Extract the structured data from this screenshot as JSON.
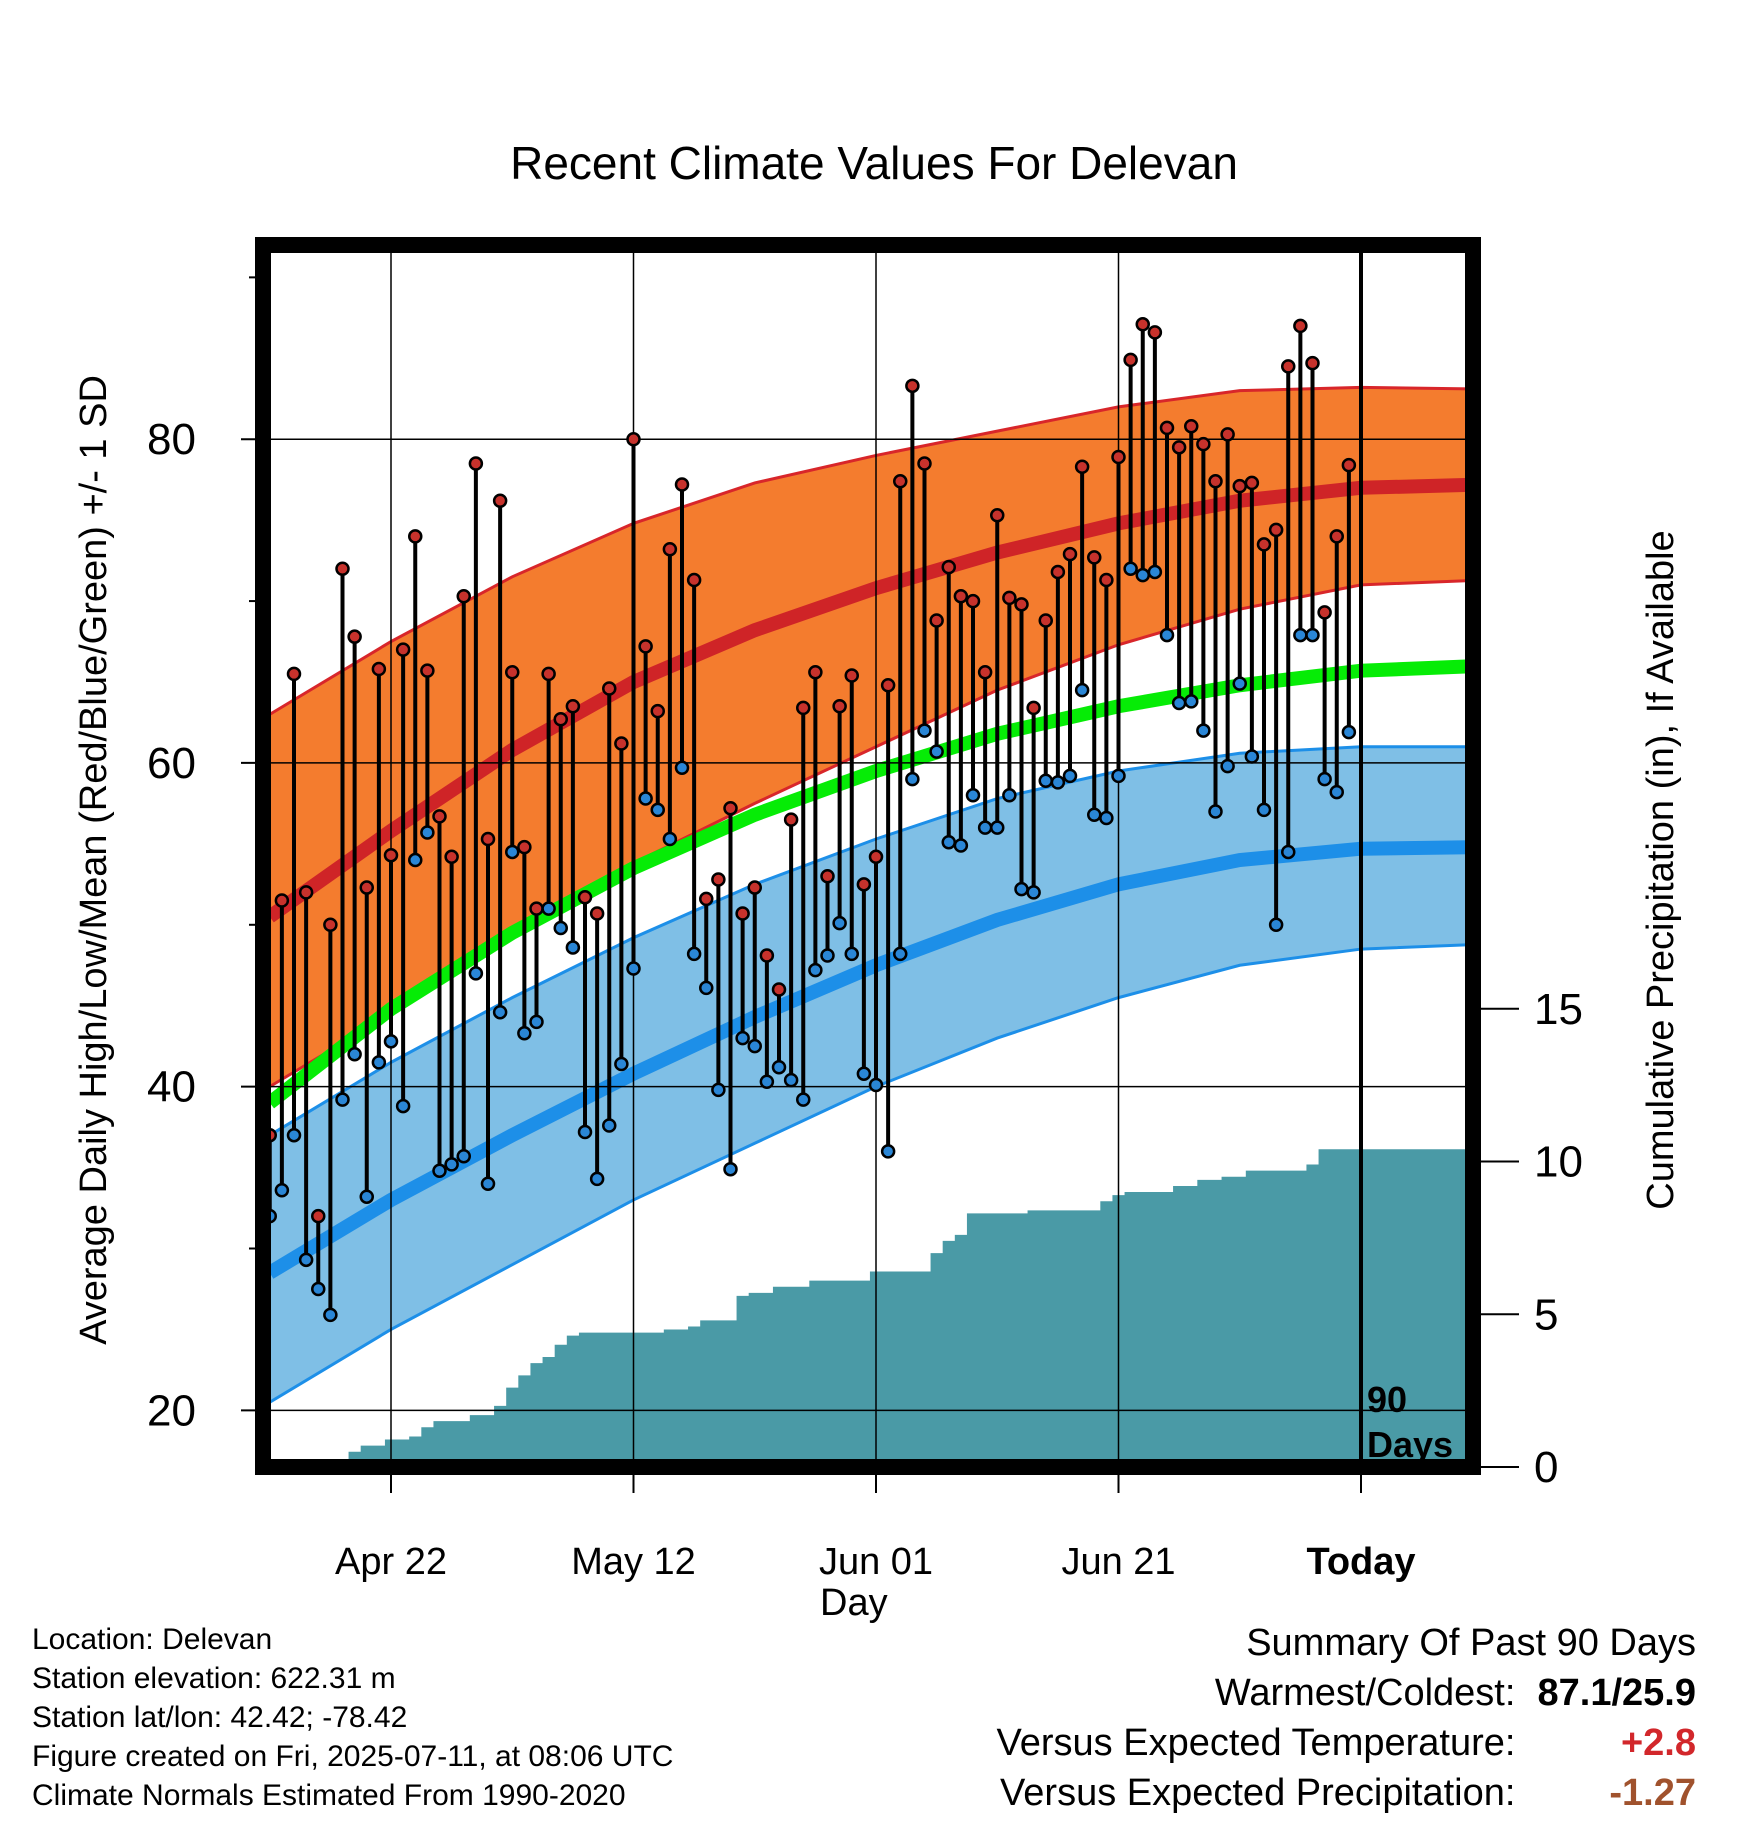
{
  "chart_data": {
    "type": "line",
    "title": "Recent Climate Values For Delevan",
    "xlabel": "Day",
    "ylabel": "Average Daily High/Low/Mean (Red/Blue/Green) +/- 1 SD",
    "y2label": "Cumulative Precipitation (in), If Available",
    "ylim": [
      16.5,
      92
    ],
    "y2lim": [
      0,
      40
    ],
    "y_ticks": [
      20,
      40,
      60,
      80
    ],
    "y2_ticks": [
      0,
      5,
      10,
      15
    ],
    "x_ticks": [
      "Apr 22",
      "May 12",
      "Jun 01",
      "Jun 21",
      "Today"
    ],
    "x_tick_days": [
      10,
      30,
      50,
      70,
      90
    ],
    "today_marker_label": [
      "90",
      "Days"
    ],
    "grid": true,
    "normals": {
      "days": [
        0,
        10,
        20,
        30,
        40,
        50,
        60,
        70,
        80,
        90,
        100
      ],
      "high_mean": [
        50.5,
        55.8,
        60.8,
        65.0,
        68.2,
        70.8,
        73.0,
        74.8,
        76.2,
        77.0,
        77.2
      ],
      "high_sd_upper": [
        63.0,
        67.5,
        71.5,
        74.8,
        77.3,
        79.0,
        80.5,
        82.0,
        83.0,
        83.2,
        83.1
      ],
      "high_sd_lower": [
        40.0,
        44.5,
        49.8,
        53.8,
        57.5,
        61.0,
        64.5,
        67.3,
        69.5,
        71.0,
        71.3
      ],
      "mean": [
        39.0,
        44.8,
        49.5,
        53.5,
        56.8,
        59.5,
        61.8,
        63.5,
        64.8,
        65.7,
        66.0
      ],
      "low_mean": [
        28.5,
        33.0,
        37.0,
        40.8,
        44.3,
        47.5,
        50.3,
        52.5,
        54.0,
        54.7,
        54.8
      ],
      "low_sd_upper": [
        37.0,
        41.5,
        45.5,
        49.2,
        52.5,
        55.3,
        57.8,
        59.5,
        60.6,
        61.0,
        61.0
      ],
      "low_sd_lower": [
        20.5,
        25.0,
        29.0,
        33.0,
        36.5,
        40.0,
        43.0,
        45.5,
        47.5,
        48.5,
        48.8
      ]
    },
    "highs": [
      37.0,
      51.5,
      65.5,
      52.0,
      32.0,
      50.0,
      72.0,
      67.8,
      52.3,
      65.8,
      54.3,
      67.0,
      74.0,
      65.7,
      56.7,
      54.2,
      70.3,
      78.5,
      55.3,
      76.2,
      65.6,
      54.8,
      51.0,
      65.5,
      62.7,
      63.5,
      51.7,
      50.7,
      64.6,
      61.2,
      80.0,
      67.2,
      63.2,
      73.2,
      77.2,
      71.3,
      51.6,
      52.8,
      57.2,
      50.7,
      52.3,
      48.1,
      46.0,
      56.5,
      63.4,
      65.6,
      53.0,
      63.5,
      65.4,
      52.5,
      54.2,
      64.8,
      77.4,
      83.3,
      78.5,
      68.8,
      72.1,
      70.3,
      70.0,
      65.6,
      75.3,
      70.2,
      69.8,
      63.4,
      68.8,
      71.8,
      72.9,
      78.3,
      72.7,
      71.3,
      78.9,
      84.9,
      87.1,
      86.6,
      80.7,
      79.5,
      80.8,
      79.7,
      77.4,
      80.3,
      77.1,
      77.3,
      73.5,
      74.4,
      84.5,
      87.0,
      84.7,
      69.3,
      74.0,
      78.4
    ],
    "lows": [
      32.0,
      33.6,
      37.0,
      29.3,
      27.5,
      25.9,
      39.2,
      42.0,
      33.2,
      41.5,
      42.8,
      38.8,
      54.0,
      55.7,
      34.8,
      35.2,
      35.7,
      47.0,
      34.0,
      44.6,
      54.5,
      43.3,
      44.0,
      51.0,
      49.8,
      48.6,
      37.2,
      34.3,
      37.6,
      41.4,
      47.3,
      57.8,
      57.1,
      55.3,
      59.7,
      48.2,
      46.1,
      39.8,
      34.9,
      43.0,
      42.5,
      40.3,
      41.2,
      40.4,
      39.2,
      47.2,
      48.1,
      50.1,
      48.2,
      40.8,
      40.1,
      36.0,
      48.2,
      59.0,
      62.0,
      60.7,
      55.1,
      54.9,
      58.0,
      56.0,
      56.0,
      58.0,
      52.2,
      52.0,
      58.9,
      58.8,
      59.2,
      64.5,
      56.8,
      56.6,
      59.2,
      72.0,
      71.6,
      71.8,
      67.9,
      63.7,
      63.8,
      62.0,
      57.0,
      59.8,
      64.9,
      60.4,
      57.1,
      50.0,
      54.5,
      67.9,
      67.9,
      59.0,
      58.2,
      61.9
    ],
    "precip_cum": [
      0,
      0,
      0,
      0,
      0,
      0,
      0,
      0.5,
      0.7,
      0.7,
      0.9,
      0.9,
      1.0,
      1.3,
      1.5,
      1.5,
      1.5,
      1.7,
      1.7,
      2.0,
      2.6,
      3.0,
      3.4,
      3.6,
      4.0,
      4.3,
      4.4,
      4.4,
      4.4,
      4.4,
      4.4,
      4.4,
      4.4,
      4.5,
      4.5,
      4.6,
      4.8,
      4.8,
      4.8,
      5.6,
      5.7,
      5.7,
      5.9,
      5.9,
      5.9,
      6.1,
      6.1,
      6.1,
      6.1,
      6.1,
      6.4,
      6.4,
      6.4,
      6.4,
      6.4,
      7.0,
      7.4,
      7.6,
      8.3,
      8.3,
      8.3,
      8.3,
      8.3,
      8.4,
      8.4,
      8.4,
      8.4,
      8.4,
      8.4,
      8.7,
      8.9,
      9.0,
      9.0,
      9.0,
      9.0,
      9.2,
      9.2,
      9.4,
      9.4,
      9.5,
      9.5,
      9.7,
      9.7,
      9.7,
      9.7,
      9.7,
      9.9,
      10.4,
      10.4,
      10.4,
      10.4,
      10.4,
      10.4,
      10.4,
      10.4,
      10.4,
      10.4,
      10.4,
      10.4,
      10.4,
      10.4
    ],
    "colors": {
      "high_band": "#f47c2e",
      "high_line": "#cf2427",
      "high_edge": "#d8262a",
      "low_band": "#7fbfe6",
      "low_line": "#1d8fe8",
      "low_edge": "#1d8fe8",
      "mean_line": "#06ec06",
      "precip": "#4a9aa6",
      "high_dot": "#c7322c",
      "low_dot": "#2a86d6"
    }
  },
  "location": {
    "name": "Location: Delevan",
    "elevation": "Station elevation: 622.31 m",
    "latlon": "Station lat/lon: 42.42; -78.42",
    "created": "Figure created on Fri, 2025-07-11, at 08:06 UTC",
    "normals_note": "Climate Normals Estimated From 1990-2020"
  },
  "summary": {
    "heading": "Summary Of Past 90 Days",
    "warmest_coldest_label": "Warmest/Coldest:",
    "warmest_coldest_value": "87.1/25.9",
    "temp_label": "Versus Expected Temperature:",
    "temp_value": "+2.8",
    "temp_color": "#d2272b",
    "precip_label": "Versus Expected Precipitation:",
    "precip_value": "-1.27",
    "precip_color": "#a0522d"
  }
}
